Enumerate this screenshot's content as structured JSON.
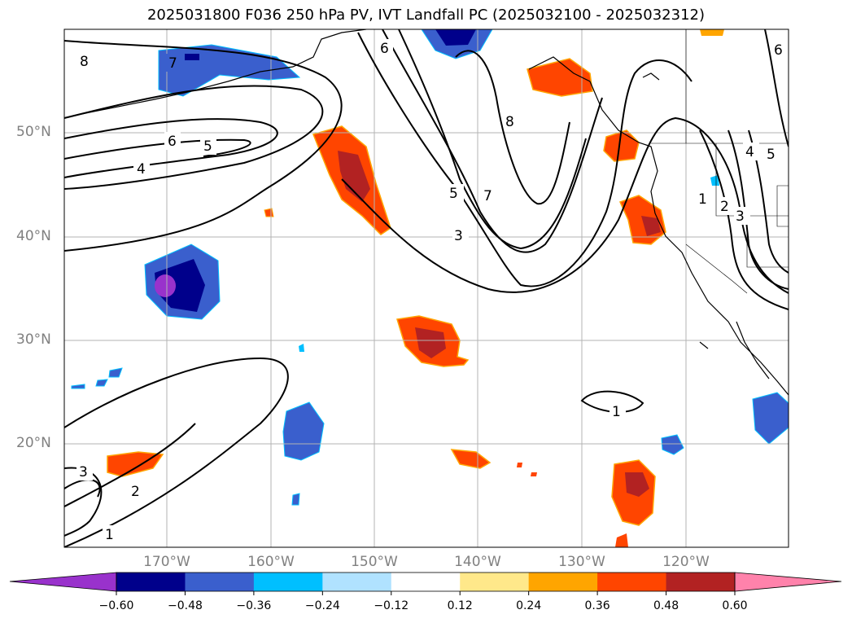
{
  "title": "2025031800 F036 250 hPa PV, IVT Landfall PC (2025032100 - 2025032312)",
  "lat_labels": [
    "50°N",
    "40°N",
    "30°N",
    "20°N"
  ],
  "lon_labels": [
    "170°W",
    "160°W",
    "150°W",
    "140°W",
    "130°W",
    "120°W"
  ],
  "colorbar": {
    "ticks": [
      "−0.60",
      "−0.48",
      "−0.36",
      "−0.24",
      "−0.12",
      "0.12",
      "0.24",
      "0.36",
      "0.48",
      "0.60"
    ],
    "colors": [
      "#9932cc",
      "#00008b",
      "#3a5fcd",
      "#00bfff",
      "#b0e2ff",
      "#ffffff",
      "#ffe88a",
      "#ffa500",
      "#ff4500",
      "#b22222",
      "#ff82ab"
    ]
  },
  "contour_labels": {
    "c8a": "8",
    "c7a": "7",
    "c6a": "6",
    "c5a": "5",
    "c4a": "4",
    "c6b": "6",
    "c8b": "8",
    "c5b": "5",
    "c7b": "7",
    "c3a": "3",
    "c1a": "1",
    "c2a": "2",
    "c3b": "3",
    "c5c": "5",
    "c4b": "4",
    "c6c": "6",
    "c1b": "1",
    "c3c": "3",
    "c2b": "2",
    "c1c": "1"
  }
}
